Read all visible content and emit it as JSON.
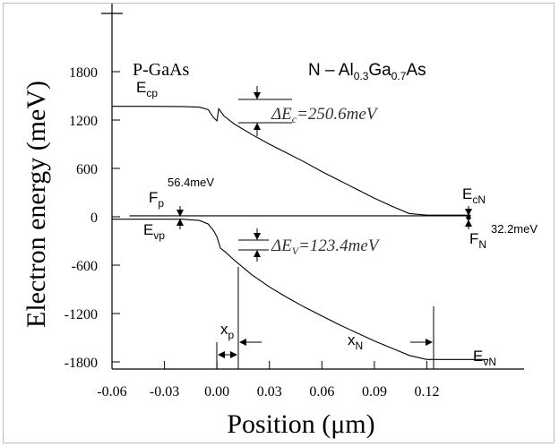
{
  "chart_data": {
    "type": "line",
    "xlabel": "Position (μm)",
    "ylabel": "Electron energy (meV)",
    "xlim": [
      -0.06,
      0.165
    ],
    "ylim": [
      -1800,
      2400
    ],
    "x_ticks": [
      -0.06,
      -0.03,
      0.0,
      0.03,
      0.06,
      0.09,
      0.12
    ],
    "x_tick_labels": [
      "-0.06",
      "-0.03",
      "0.00",
      "0.03",
      "0.06",
      "0.09",
      "0.12"
    ],
    "y_ticks": [
      -1800,
      -1200,
      -600,
      0,
      600,
      1200,
      1800
    ],
    "y_tick_labels": [
      "-1800",
      "-1200",
      "-600",
      "0",
      "600",
      "1200",
      "1800"
    ],
    "grid": false,
    "series": [
      {
        "points": [
          [
            -0.06,
            1370
          ],
          [
            -0.04,
            1370
          ],
          [
            -0.02,
            1368
          ],
          [
            -0.01,
            1360
          ],
          [
            -0.005,
            1330
          ],
          [
            -0.002,
            1230
          ],
          [
            0.0,
            1190
          ],
          [
            0.001,
            1340
          ],
          [
            0.004,
            1250
          ],
          [
            0.01,
            1150
          ],
          [
            0.02,
            1020
          ],
          [
            0.03,
            900
          ],
          [
            0.04,
            790
          ],
          [
            0.05,
            680
          ],
          [
            0.06,
            560
          ],
          [
            0.07,
            450
          ],
          [
            0.08,
            340
          ],
          [
            0.09,
            230
          ],
          [
            0.1,
            130
          ],
          [
            0.11,
            40
          ],
          [
            0.12,
            20
          ],
          [
            0.145,
            20
          ]
        ]
      },
      {
        "points": [
          [
            -0.06,
            -30
          ],
          [
            -0.04,
            -30
          ],
          [
            -0.02,
            -30
          ],
          [
            -0.01,
            -45
          ],
          [
            -0.005,
            -90
          ],
          [
            -0.002,
            -170
          ],
          [
            0.0,
            -250
          ],
          [
            0.002,
            -390
          ],
          [
            0.005,
            -440
          ],
          [
            0.01,
            -540
          ],
          [
            0.02,
            -720
          ],
          [
            0.03,
            -870
          ],
          [
            0.04,
            -1000
          ],
          [
            0.05,
            -1120
          ],
          [
            0.06,
            -1230
          ],
          [
            0.07,
            -1340
          ],
          [
            0.08,
            -1440
          ],
          [
            0.09,
            -1540
          ],
          [
            0.1,
            -1630
          ],
          [
            0.11,
            -1720
          ],
          [
            0.12,
            -1770
          ],
          [
            0.155,
            -1770
          ]
        ]
      },
      {
        "points": [
          [
            -0.05,
            12
          ],
          [
            0.145,
            12
          ]
        ]
      }
    ],
    "annotations": {
      "p_region": "P-GaAs",
      "n_region": {
        "prefix": "N – Al",
        "sub1": "0.3",
        "mid": "Ga",
        "sub2": "0.7",
        "suffix": "As"
      },
      "ecp": {
        "main": "E",
        "sub": "cp"
      },
      "evp": {
        "main": "E",
        "sub": "vp"
      },
      "fp": {
        "main": "F",
        "sub": "p"
      },
      "fp_value": "56.4meV",
      "ecn": {
        "main": "E",
        "sub": "cN"
      },
      "fn": {
        "main": "F",
        "sub": "N"
      },
      "fn_value": "32.2meV",
      "evn": {
        "main": "E",
        "sub": "vN"
      },
      "xp": {
        "main": "x",
        "sub": "p"
      },
      "xn": {
        "main": "x",
        "sub": "N"
      },
      "delta_ec": {
        "delta": "ΔE",
        "sub": "c",
        "rest": "=250.6meV"
      },
      "delta_ev": {
        "delta": "ΔE",
        "sub": "V",
        "rest": "=123.4meV"
      }
    }
  }
}
